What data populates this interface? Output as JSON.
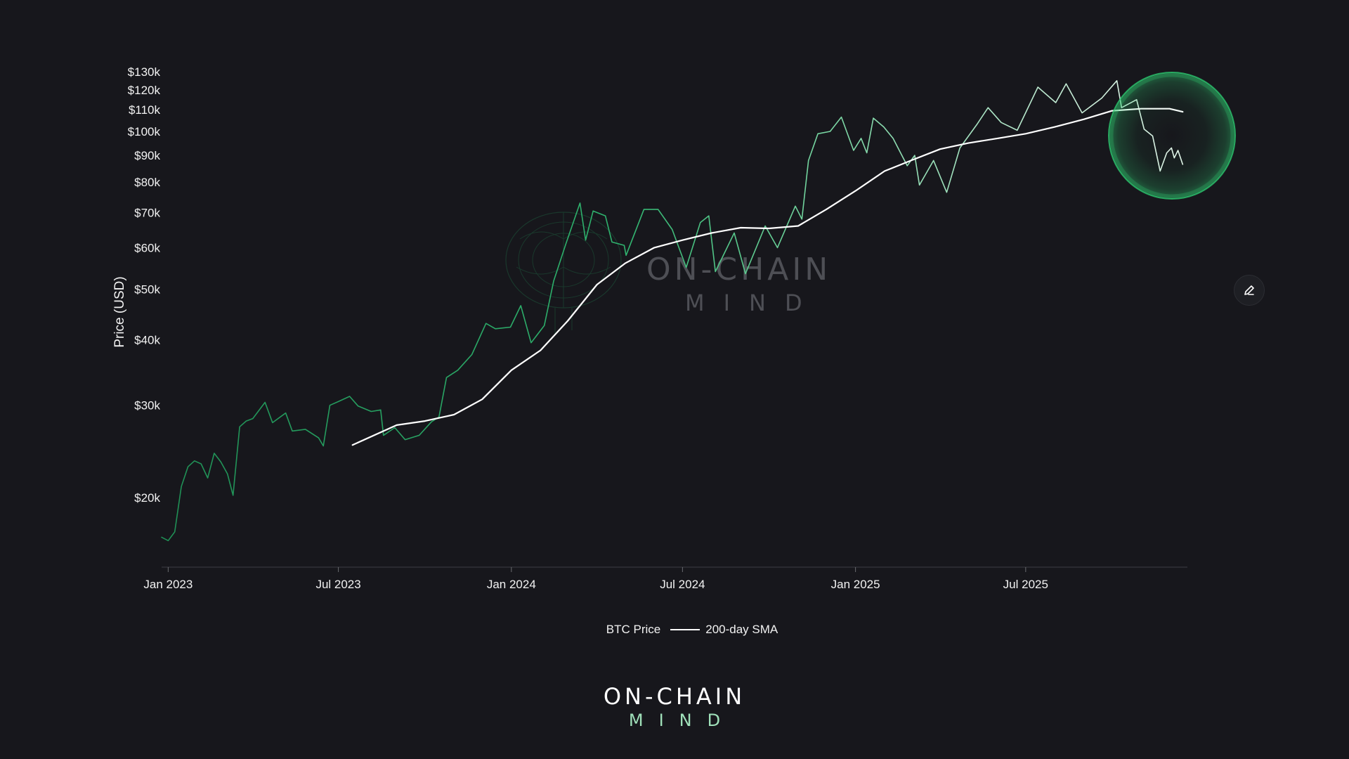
{
  "chart_data": {
    "type": "line",
    "scale": "log",
    "ylabel": "Price (USD)",
    "xlabel": "",
    "x_ticks": [
      "Jan 2023",
      "Jul 2023",
      "Jan 2024",
      "Jul 2024",
      "Jan 2025",
      "Jul 2025"
    ],
    "y_ticks": [
      "$20k",
      "$30k",
      "$40k",
      "$50k",
      "$60k",
      "$70k",
      "$80k",
      "$90k",
      "$100k",
      "$110k",
      "$120k",
      "$130k"
    ],
    "y_tick_values": [
      20000,
      30000,
      40000,
      50000,
      60000,
      70000,
      80000,
      90000,
      100000,
      110000,
      120000,
      130000
    ],
    "xlim": [
      "2022-12-25",
      "2025-12-20"
    ],
    "ylim": [
      15000,
      132000
    ],
    "series": [
      {
        "name": "BTC Price",
        "color": "#28a164",
        "color_end": "#e6f5ec",
        "points": [
          [
            "2022-12-25",
            16800
          ],
          [
            "2023-01-01",
            16550
          ],
          [
            "2023-01-08",
            17200
          ],
          [
            "2023-01-15",
            21000
          ],
          [
            "2023-01-22",
            22900
          ],
          [
            "2023-01-29",
            23500
          ],
          [
            "2023-02-05",
            23200
          ],
          [
            "2023-02-12",
            21800
          ],
          [
            "2023-02-19",
            24300
          ],
          [
            "2023-02-26",
            23400
          ],
          [
            "2023-03-05",
            22200
          ],
          [
            "2023-03-11",
            20200
          ],
          [
            "2023-03-18",
            27300
          ],
          [
            "2023-03-25",
            28000
          ],
          [
            "2023-04-01",
            28300
          ],
          [
            "2023-04-14",
            30400
          ],
          [
            "2023-04-22",
            27800
          ],
          [
            "2023-05-06",
            29000
          ],
          [
            "2023-05-13",
            26800
          ],
          [
            "2023-05-27",
            27000
          ],
          [
            "2023-06-10",
            26000
          ],
          [
            "2023-06-15",
            25100
          ],
          [
            "2023-06-22",
            30000
          ],
          [
            "2023-07-01",
            30500
          ],
          [
            "2023-07-13",
            31200
          ],
          [
            "2023-07-22",
            29900
          ],
          [
            "2023-08-05",
            29200
          ],
          [
            "2023-08-15",
            29400
          ],
          [
            "2023-08-18",
            26300
          ],
          [
            "2023-08-30",
            27200
          ],
          [
            "2023-09-10",
            25800
          ],
          [
            "2023-09-25",
            26300
          ],
          [
            "2023-10-08",
            27900
          ],
          [
            "2023-10-16",
            28500
          ],
          [
            "2023-10-24",
            33900
          ],
          [
            "2023-11-05",
            35000
          ],
          [
            "2023-11-20",
            37500
          ],
          [
            "2023-12-05",
            43000
          ],
          [
            "2023-12-15",
            42000
          ],
          [
            "2023-12-31",
            42300
          ],
          [
            "2024-01-11",
            46500
          ],
          [
            "2024-01-22",
            39500
          ],
          [
            "2024-02-05",
            42600
          ],
          [
            "2024-02-15",
            51800
          ],
          [
            "2024-02-28",
            61000
          ],
          [
            "2024-03-14",
            73000
          ],
          [
            "2024-03-20",
            62000
          ],
          [
            "2024-03-28",
            70500
          ],
          [
            "2024-04-10",
            69000
          ],
          [
            "2024-04-17",
            61500
          ],
          [
            "2024-04-30",
            60600
          ],
          [
            "2024-05-02",
            58000
          ],
          [
            "2024-05-21",
            71000
          ],
          [
            "2024-06-05",
            71000
          ],
          [
            "2024-06-20",
            65000
          ],
          [
            "2024-07-05",
            55000
          ],
          [
            "2024-07-20",
            67000
          ],
          [
            "2024-07-29",
            69000
          ],
          [
            "2024-08-05",
            54000
          ],
          [
            "2024-08-25",
            64000
          ],
          [
            "2024-09-06",
            53500
          ],
          [
            "2024-09-27",
            66000
          ],
          [
            "2024-10-10",
            60000
          ],
          [
            "2024-10-29",
            72000
          ],
          [
            "2024-11-05",
            68000
          ],
          [
            "2024-11-12",
            88000
          ],
          [
            "2024-11-22",
            99000
          ],
          [
            "2024-12-05",
            100000
          ],
          [
            "2024-12-17",
            106500
          ],
          [
            "2024-12-30",
            92000
          ],
          [
            "2025-01-07",
            97000
          ],
          [
            "2025-01-13",
            91000
          ],
          [
            "2025-01-20",
            106000
          ],
          [
            "2025-01-31",
            102000
          ],
          [
            "2025-02-10",
            97000
          ],
          [
            "2025-02-25",
            86000
          ],
          [
            "2025-03-05",
            90000
          ],
          [
            "2025-03-10",
            79000
          ],
          [
            "2025-03-25",
            88000
          ],
          [
            "2025-04-08",
            76500
          ],
          [
            "2025-04-22",
            93000
          ],
          [
            "2025-05-10",
            103000
          ],
          [
            "2025-05-22",
            111000
          ],
          [
            "2025-06-05",
            104000
          ],
          [
            "2025-06-22",
            100500
          ],
          [
            "2025-07-14",
            121500
          ],
          [
            "2025-08-02",
            113500
          ],
          [
            "2025-08-13",
            123300
          ],
          [
            "2025-08-30",
            108500
          ],
          [
            "2025-09-20",
            115800
          ],
          [
            "2025-10-06",
            125000
          ],
          [
            "2025-10-11",
            111000
          ],
          [
            "2025-10-27",
            115000
          ],
          [
            "2025-11-04",
            101000
          ],
          [
            "2025-11-13",
            98000
          ],
          [
            "2025-11-21",
            84000
          ],
          [
            "2025-11-28",
            91000
          ],
          [
            "2025-12-03",
            93000
          ],
          [
            "2025-12-06",
            89000
          ],
          [
            "2025-12-10",
            92000
          ],
          [
            "2025-12-15",
            86500
          ]
        ]
      },
      {
        "name": "200-day SMA",
        "color": "#ffffff",
        "points": [
          [
            "2023-07-16",
            25200
          ],
          [
            "2023-09-01",
            27500
          ],
          [
            "2023-10-01",
            28000
          ],
          [
            "2023-11-01",
            28800
          ],
          [
            "2023-12-01",
            30800
          ],
          [
            "2024-01-01",
            35000
          ],
          [
            "2024-02-01",
            38200
          ],
          [
            "2024-03-01",
            43500
          ],
          [
            "2024-04-01",
            51000
          ],
          [
            "2024-05-01",
            56000
          ],
          [
            "2024-06-01",
            60000
          ],
          [
            "2024-07-01",
            62000
          ],
          [
            "2024-08-01",
            64000
          ],
          [
            "2024-09-01",
            65500
          ],
          [
            "2024-10-01",
            65300
          ],
          [
            "2024-11-01",
            66000
          ],
          [
            "2024-12-01",
            71000
          ],
          [
            "2025-01-01",
            77000
          ],
          [
            "2025-02-01",
            84000
          ],
          [
            "2025-03-01",
            88000
          ],
          [
            "2025-04-01",
            92500
          ],
          [
            "2025-05-01",
            95000
          ],
          [
            "2025-06-01",
            97000
          ],
          [
            "2025-07-01",
            99000
          ],
          [
            "2025-08-01",
            102000
          ],
          [
            "2025-09-01",
            105500
          ],
          [
            "2025-10-01",
            109500
          ],
          [
            "2025-11-01",
            110500
          ],
          [
            "2025-12-01",
            110500
          ],
          [
            "2025-12-15",
            109000
          ]
        ]
      }
    ],
    "highlight_color": "#2ecc71",
    "legend_placement": "bottom-center",
    "grid": false
  },
  "legend": {
    "price_label": "BTC Price",
    "sma_label": "200-day SMA"
  },
  "watermark": {
    "main": "ON-CHAIN",
    "sub": "MIND"
  },
  "brand": {
    "main": "ON-CHAIN",
    "sub": "MIND"
  },
  "icons": {
    "edit": "pencil-icon"
  }
}
